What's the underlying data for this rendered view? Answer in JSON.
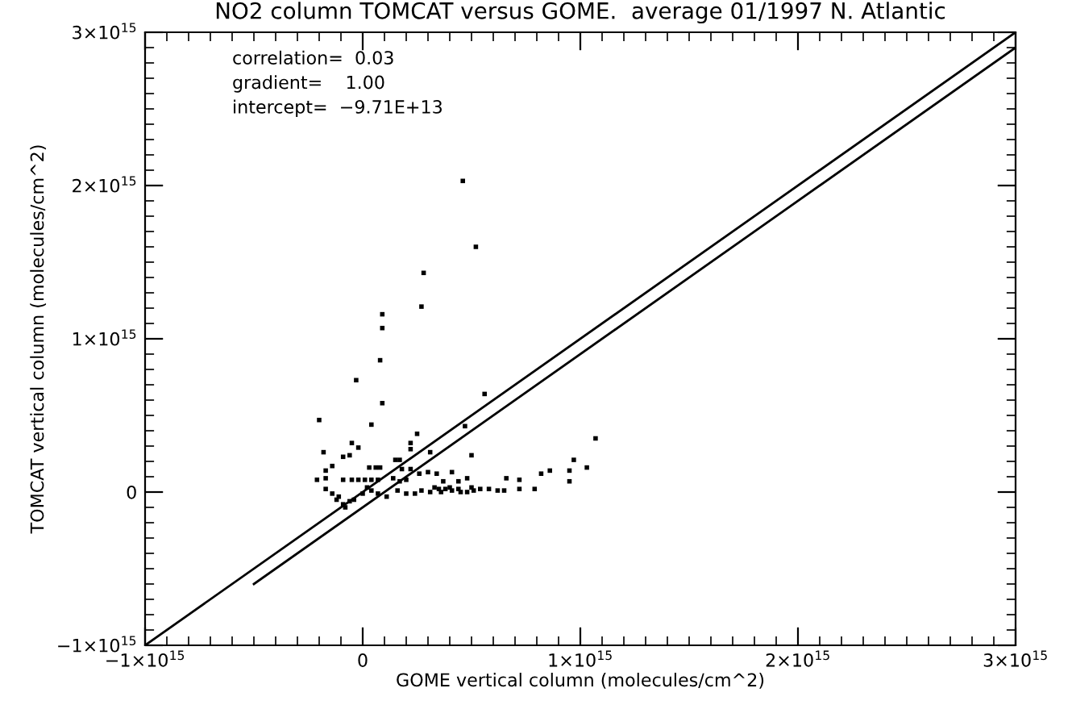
{
  "chart_data": {
    "type": "scatter",
    "title": "NO2 column TOMCAT versus GOME.  average 01/1997 N. Atlantic",
    "xlabel": "GOME vertical column (molecules/cm^2)",
    "ylabel": "TOMCAT vertical column (molecules/cm^2)",
    "annotations": [
      "correlation=  0.03",
      "gradient=    1.00",
      "intercept=  −9.71E+13"
    ],
    "xlim": [
      -1000000000000000.0,
      3000000000000000.0
    ],
    "ylim": [
      -1000000000000000.0,
      3000000000000000.0
    ],
    "xticks": [
      {
        "value": -1000000000000000.0,
        "label": "−1×10$^{15}$"
      },
      {
        "value": 0,
        "label": "0"
      },
      {
        "value": 1000000000000000.0,
        "label": "1×10$^{15}$"
      },
      {
        "value": 2000000000000000.0,
        "label": "2×10$^{15}$"
      },
      {
        "value": 3000000000000000.0,
        "label": "3×10$^{15}$"
      }
    ],
    "yticks": [
      {
        "value": -1000000000000000.0,
        "label": "−1×10$^{15}$"
      },
      {
        "value": 0,
        "label": "0"
      },
      {
        "value": 1000000000000000.0,
        "label": "1×10$^{15}$"
      },
      {
        "value": 2000000000000000.0,
        "label": "2×10$^{15}$"
      },
      {
        "value": 3000000000000000.0,
        "label": "3×10$^{15}$"
      }
    ],
    "grid": false,
    "legend": false,
    "marker": "square",
    "series": [
      {
        "color": "#000000",
        "x": [
          460000000000000.0,
          520000000000000.0,
          280000000000000.0,
          270000000000000.0,
          90000000000000.0,
          90000000000000.0,
          80000000000000.0,
          -30000000000000.0,
          90000000000000.0,
          560000000000000.0,
          -200000000000000.0,
          40000000000000.0,
          470000000000000.0,
          250000000000000.0,
          -180000000000000.0,
          -50000000000000.0,
          -20000000000000.0,
          220000000000000.0,
          220000000000000.0,
          -90000000000000.0,
          -60000000000000.0,
          310000000000000.0,
          150000000000000.0,
          170000000000000.0,
          500000000000000.0,
          -140000000000000.0,
          -170000000000000.0,
          30000000000000.0,
          60000000000000.0,
          80000000000000.0,
          180000000000000.0,
          220000000000000.0,
          -210000000000000.0,
          -170000000000000.0,
          -90000000000000.0,
          -50000000000000.0,
          -20000000000000.0,
          10000000000000.0,
          40000000000000.0,
          70000000000000.0,
          140000000000000.0,
          170000000000000.0,
          200000000000000.0,
          260000000000000.0,
          300000000000000.0,
          340000000000000.0,
          370000000000000.0,
          410000000000000.0,
          440000000000000.0,
          480000000000000.0,
          660000000000000.0,
          720000000000000.0,
          820000000000000.0,
          860000000000000.0,
          950000000000000.0,
          970000000000000.0,
          1070000000000000.0,
          1030000000000000.0,
          950000000000000.0,
          -170000000000000.0,
          -140000000000000.0,
          -110000000000000.0,
          -90000000000000.0,
          -60000000000000.0,
          -40000000000000.0,
          0,
          40000000000000.0,
          70000000000000.0,
          110000000000000.0,
          160000000000000.0,
          200000000000000.0,
          240000000000000.0,
          270000000000000.0,
          310000000000000.0,
          350000000000000.0,
          380000000000000.0,
          410000000000000.0,
          440000000000000.0,
          480000000000000.0,
          510000000000000.0,
          540000000000000.0,
          580000000000000.0,
          620000000000000.0,
          650000000000000.0,
          720000000000000.0,
          790000000000000.0,
          330000000000000.0,
          360000000000000.0,
          400000000000000.0,
          450000000000000.0,
          500000000000000.0,
          -80000000000000.0,
          -120000000000000.0,
          20000000000000.0
        ],
        "values": [
          2030000000000000.0,
          1600000000000000.0,
          1430000000000000.0,
          1210000000000000.0,
          1160000000000000.0,
          1070000000000000.0,
          860000000000000.0,
          730000000000000.0,
          580000000000000.0,
          640000000000000.0,
          470000000000000.0,
          440000000000000.0,
          430000000000000.0,
          380000000000000.0,
          260000000000000.0,
          320000000000000.0,
          290000000000000.0,
          320000000000000.0,
          280000000000000.0,
          230000000000000.0,
          240000000000000.0,
          260000000000000.0,
          210000000000000.0,
          210000000000000.0,
          240000000000000.0,
          170000000000000.0,
          140000000000000.0,
          160000000000000.0,
          160000000000000.0,
          160000000000000.0,
          150000000000000.0,
          150000000000000.0,
          80000000000000.0,
          90000000000000.0,
          80000000000000.0,
          80000000000000.0,
          80000000000000.0,
          80000000000000.0,
          80000000000000.0,
          80000000000000.0,
          90000000000000.0,
          70000000000000.0,
          80000000000000.0,
          120000000000000.0,
          130000000000000.0,
          120000000000000.0,
          70000000000000.0,
          130000000000000.0,
          70000000000000.0,
          90000000000000.0,
          90000000000000.0,
          80000000000000.0,
          120000000000000.0,
          140000000000000.0,
          70000000000000.0,
          210000000000000.0,
          350000000000000.0,
          160000000000000.0,
          140000000000000.0,
          20000000000000.0,
          -10000000000000.0,
          -30000000000000.0,
          -80000000000000.0,
          -60000000000000.0,
          -50000000000000.0,
          -10000000000000.0,
          10000000000000.0,
          -10000000000000.0,
          -30000000000000.0,
          10000000000000.0,
          -10000000000000.0,
          -10000000000000.0,
          10000000000000.0,
          0,
          20000000000000.0,
          20000000000000.0,
          10000000000000.0,
          20000000000000.0,
          0,
          10000000000000.0,
          20000000000000.0,
          20000000000000.0,
          10000000000000.0,
          10000000000000.0,
          20000000000000.0,
          20000000000000.0,
          30000000000000.0,
          0,
          30000000000000.0,
          0,
          30000000000000.0,
          -100000000000000.0,
          -50000000000000.0,
          30000000000000.0
        ]
      },
      {
        "type": "line",
        "color": "#000000",
        "line_style": "solid",
        "marker": "none",
        "x": [
          -1000000000000000.0,
          3000000000000000.0
        ],
        "values": [
          -1000000000000000.0,
          3000000000000000.0
        ]
      },
      {
        "type": "line",
        "color": "#000000",
        "line_style": "solid",
        "marker": "none",
        "x": [
          -500000000000000.0,
          3000000000000000.0
        ],
        "values": [
          -600000000000000.0,
          2900000000000000.0
        ]
      }
    ]
  }
}
